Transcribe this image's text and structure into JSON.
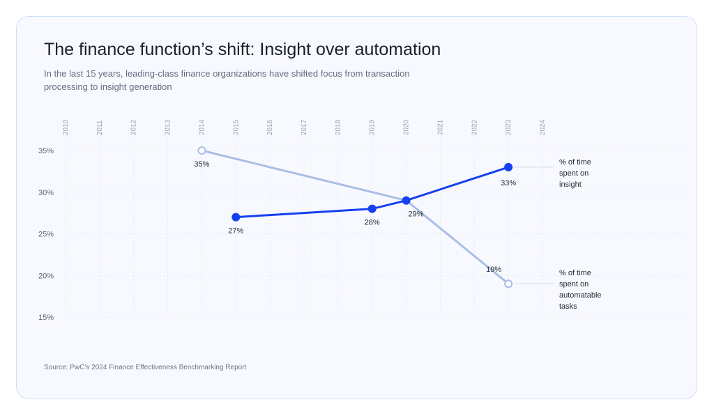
{
  "title": "The finance function’s shift: Insight over automation",
  "subtitle": "In the last 15 years, leading-class finance organizations have shifted focus from transaction processing to insight generation",
  "source": "Source: PwC’s 2024 Finance Effectiveness Benchmarking Report",
  "chart_data": {
    "type": "line",
    "x_ticks": [
      "2010",
      "2011",
      "2012",
      "2013",
      "2014",
      "2015",
      "2016",
      "2017",
      "2018",
      "2019",
      "2020",
      "2021",
      "2022",
      "2023",
      "2024"
    ],
    "y_ticks": [
      "35%",
      "30%",
      "25%",
      "20%",
      "15%"
    ],
    "ylim": [
      15,
      35
    ],
    "xlim": [
      2010,
      2024
    ],
    "grid": true,
    "x_axis_position": "top",
    "series": [
      {
        "name": "% of time spent on insight",
        "label_lines": [
          "% of time",
          "spent on",
          "insight"
        ],
        "color": "#1440f0",
        "marker": "filled",
        "points": [
          {
            "x": 2015,
            "y": 27,
            "label": "27%"
          },
          {
            "x": 2019,
            "y": 28,
            "label": "28%"
          },
          {
            "x": 2020,
            "y": 29,
            "label": "29%"
          },
          {
            "x": 2023,
            "y": 33,
            "label": "33%"
          }
        ]
      },
      {
        "name": "% of time spent on automatable tasks",
        "label_lines": [
          "% of time",
          "spent on",
          "automatable",
          "tasks"
        ],
        "color": "#a9bde8",
        "marker": "hollow",
        "points": [
          {
            "x": 2014,
            "y": 35,
            "label": "35%"
          },
          {
            "x": 2020,
            "y": 29,
            "label": ""
          },
          {
            "x": 2023,
            "y": 19,
            "label": "19%"
          }
        ]
      }
    ]
  }
}
